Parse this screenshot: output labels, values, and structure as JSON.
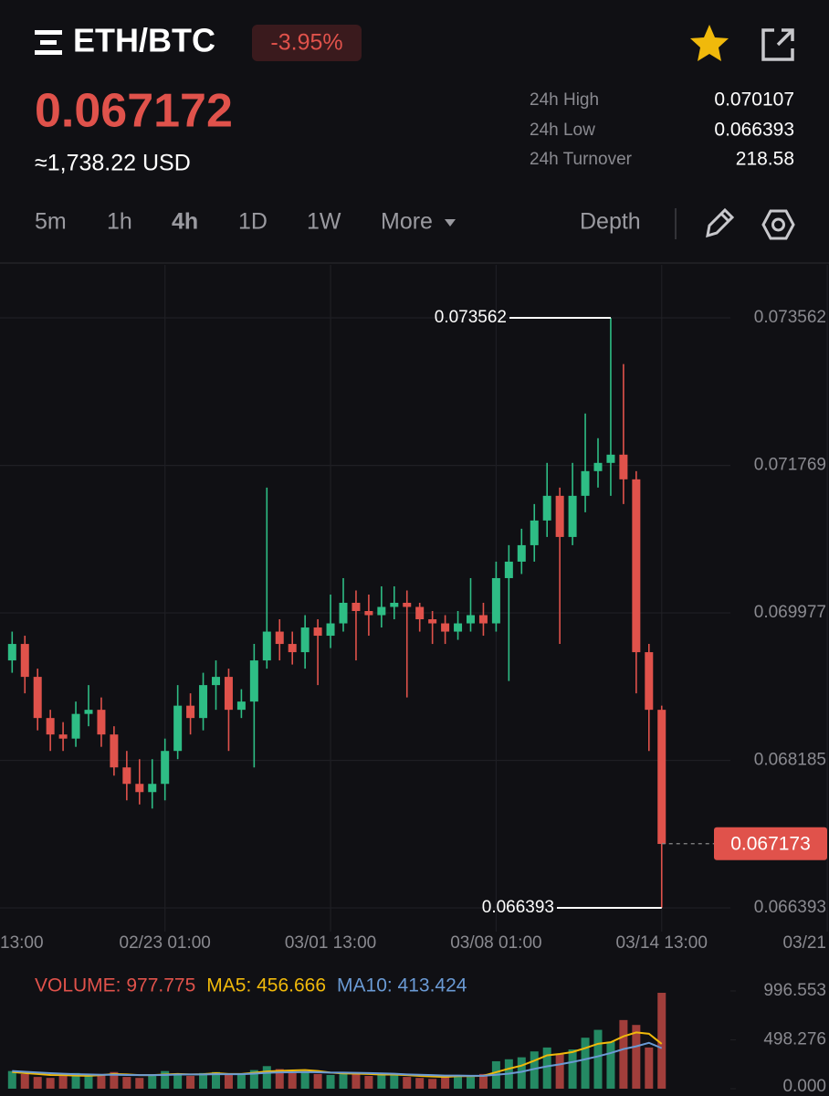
{
  "header": {
    "pair": "ETH/BTC",
    "change": "-3.95%",
    "price": "0.067172",
    "usd": "≈1,738.22 USD"
  },
  "stats": [
    {
      "label": "24h High",
      "value": "0.070107"
    },
    {
      "label": "24h Low",
      "value": "0.066393"
    },
    {
      "label": "24h Turnover",
      "value": "218.58"
    }
  ],
  "tabs": {
    "intervals": [
      "5m",
      "1h",
      "4h",
      "1D",
      "1W"
    ],
    "active": 2,
    "more": "More",
    "depth": "Depth"
  },
  "chart_data": [
    {
      "type": "candlestick",
      "x": [
        2,
        5,
        8,
        11,
        14,
        17,
        20,
        23,
        26,
        29,
        32,
        35,
        38,
        41,
        44,
        47,
        50,
        53,
        56,
        59,
        62,
        65,
        68,
        71,
        74,
        77,
        80,
        83,
        86,
        89,
        92,
        95,
        98,
        101,
        104,
        107,
        110,
        113,
        116,
        119,
        122,
        125,
        128,
        131,
        134,
        137,
        140,
        143,
        146,
        149,
        152,
        155
      ],
      "open": [
        0.0694,
        0.0696,
        0.0692,
        0.0687,
        0.0685,
        0.06845,
        0.06875,
        0.0688,
        0.0685,
        0.0681,
        0.0679,
        0.0678,
        0.0679,
        0.0683,
        0.06885,
        0.0687,
        0.0691,
        0.0692,
        0.0688,
        0.0689,
        0.0694,
        0.06975,
        0.0696,
        0.0695,
        0.0698,
        0.0697,
        0.06985,
        0.0701,
        0.07,
        0.06995,
        0.07005,
        0.0701,
        0.07005,
        0.0699,
        0.06985,
        0.06975,
        0.06985,
        0.06995,
        0.06985,
        0.0704,
        0.0706,
        0.0708,
        0.0711,
        0.0714,
        0.0709,
        0.0714,
        0.0717,
        0.0718,
        0.0719,
        0.0716,
        0.0695,
        0.0688
      ],
      "high": [
        0.06975,
        0.0697,
        0.0693,
        0.0688,
        0.06865,
        0.0689,
        0.0691,
        0.06895,
        0.0686,
        0.0683,
        0.0682,
        0.0682,
        0.06845,
        0.0691,
        0.069,
        0.06925,
        0.0694,
        0.0693,
        0.06905,
        0.0696,
        0.0715,
        0.0699,
        0.06975,
        0.06995,
        0.0699,
        0.0702,
        0.0704,
        0.07025,
        0.0702,
        0.0703,
        0.0703,
        0.07025,
        0.0701,
        0.07,
        0.06995,
        0.07,
        0.0704,
        0.0701,
        0.0706,
        0.0708,
        0.071,
        0.0713,
        0.0718,
        0.0715,
        0.0718,
        0.0724,
        0.0721,
        0.073562,
        0.073,
        0.0717,
        0.0696,
        0.06885
      ],
      "low": [
        0.06925,
        0.069,
        0.06855,
        0.0683,
        0.0683,
        0.06835,
        0.0686,
        0.06835,
        0.068,
        0.0677,
        0.06765,
        0.0676,
        0.0677,
        0.0682,
        0.0685,
        0.06855,
        0.0688,
        0.0683,
        0.0687,
        0.0681,
        0.0693,
        0.0694,
        0.06935,
        0.0693,
        0.0691,
        0.06955,
        0.06975,
        0.0694,
        0.0697,
        0.0698,
        0.0699,
        0.06895,
        0.06975,
        0.0696,
        0.0696,
        0.06965,
        0.06975,
        0.0697,
        0.06975,
        0.06915,
        0.07045,
        0.0706,
        0.0709,
        0.0696,
        0.0708,
        0.0712,
        0.0715,
        0.0714,
        0.0713,
        0.069,
        0.0683,
        0.066393
      ],
      "close": [
        0.0696,
        0.0692,
        0.0687,
        0.0685,
        0.06845,
        0.06875,
        0.0688,
        0.0685,
        0.0681,
        0.0679,
        0.0678,
        0.0679,
        0.0683,
        0.06885,
        0.0687,
        0.0691,
        0.0692,
        0.0688,
        0.0689,
        0.0694,
        0.06975,
        0.0696,
        0.0695,
        0.0698,
        0.0697,
        0.06985,
        0.0701,
        0.07,
        0.06995,
        0.07005,
        0.0701,
        0.07005,
        0.0699,
        0.06985,
        0.06975,
        0.06985,
        0.06995,
        0.06985,
        0.0704,
        0.0706,
        0.0708,
        0.0711,
        0.0714,
        0.0709,
        0.0714,
        0.0717,
        0.0718,
        0.0719,
        0.0716,
        0.0695,
        0.0688,
        0.06717
      ],
      "up_color": "#2ebd85",
      "down_color": "#e0524b",
      "ylim": [
        0.066105,
        0.074206
      ],
      "yticks": [
        0.066393,
        0.068185,
        0.069977,
        0.071769,
        0.073562
      ],
      "xlim": [
        -0.86,
        194.41
      ],
      "xticks": [
        {
          "value": -1,
          "label": "13:00"
        },
        {
          "value": 38,
          "label": "02/23 01:00"
        },
        {
          "value": 77,
          "label": "03/01 13:00"
        },
        {
          "value": 116,
          "label": "03/08 01:00"
        },
        {
          "value": 155,
          "label": "03/14 13:00"
        },
        {
          "value": 194,
          "label": "03/21"
        }
      ],
      "grid": true,
      "high_label": 0.073562,
      "low_label": 0.066393,
      "last_price": 0.067173
    },
    {
      "type": "bar",
      "series": [
        {
          "name": "VOLUME: 977.775",
          "color": "#e0524b",
          "values": [
            180,
            150,
            120,
            110,
            130,
            160,
            140,
            150,
            170,
            120,
            110,
            140,
            180,
            150,
            130,
            160,
            170,
            140,
            150,
            190,
            230,
            200,
            160,
            170,
            150,
            140,
            160,
            150,
            130,
            140,
            150,
            120,
            110,
            100,
            130,
            140,
            120,
            150,
            280,
            300,
            320,
            380,
            420,
            350,
            400,
            520,
            600,
            480,
            700,
            650,
            420,
            977.775
          ]
        },
        {
          "name": "MA5: 456.666",
          "color": "#f0b90b",
          "values": [
            170,
            160,
            150,
            140,
            138,
            134,
            132,
            138,
            150,
            146,
            138,
            138,
            144,
            150,
            146,
            148,
            158,
            150,
            150,
            162,
            176,
            182,
            186,
            190,
            180,
            164,
            156,
            154,
            150,
            144,
            144,
            138,
            130,
            124,
            120,
            128,
            128,
            132,
            168,
            204,
            236,
            286,
            340,
            354,
            374,
            414,
            458,
            474,
            534,
            574,
            560,
            456.666
          ]
        },
        {
          "name": "MA10: 413.424",
          "color": "#6a9ad4",
          "values": [
            180,
            172,
            165,
            158,
            152,
            148,
            145,
            142,
            142,
            140,
            138,
            138,
            140,
            144,
            145,
            146,
            148,
            148,
            148,
            154,
            162,
            166,
            168,
            170,
            168,
            164,
            164,
            162,
            160,
            156,
            152,
            146,
            142,
            138,
            134,
            134,
            132,
            132,
            142,
            154,
            172,
            202,
            228,
            248,
            272,
            300,
            330,
            364,
            404,
            432,
            468,
            413.424
          ]
        }
      ],
      "ylim": [
        0,
        996.553
      ],
      "yticks": [
        {
          "value": 0,
          "label": "0.000"
        },
        498.276,
        996.553
      ]
    }
  ]
}
